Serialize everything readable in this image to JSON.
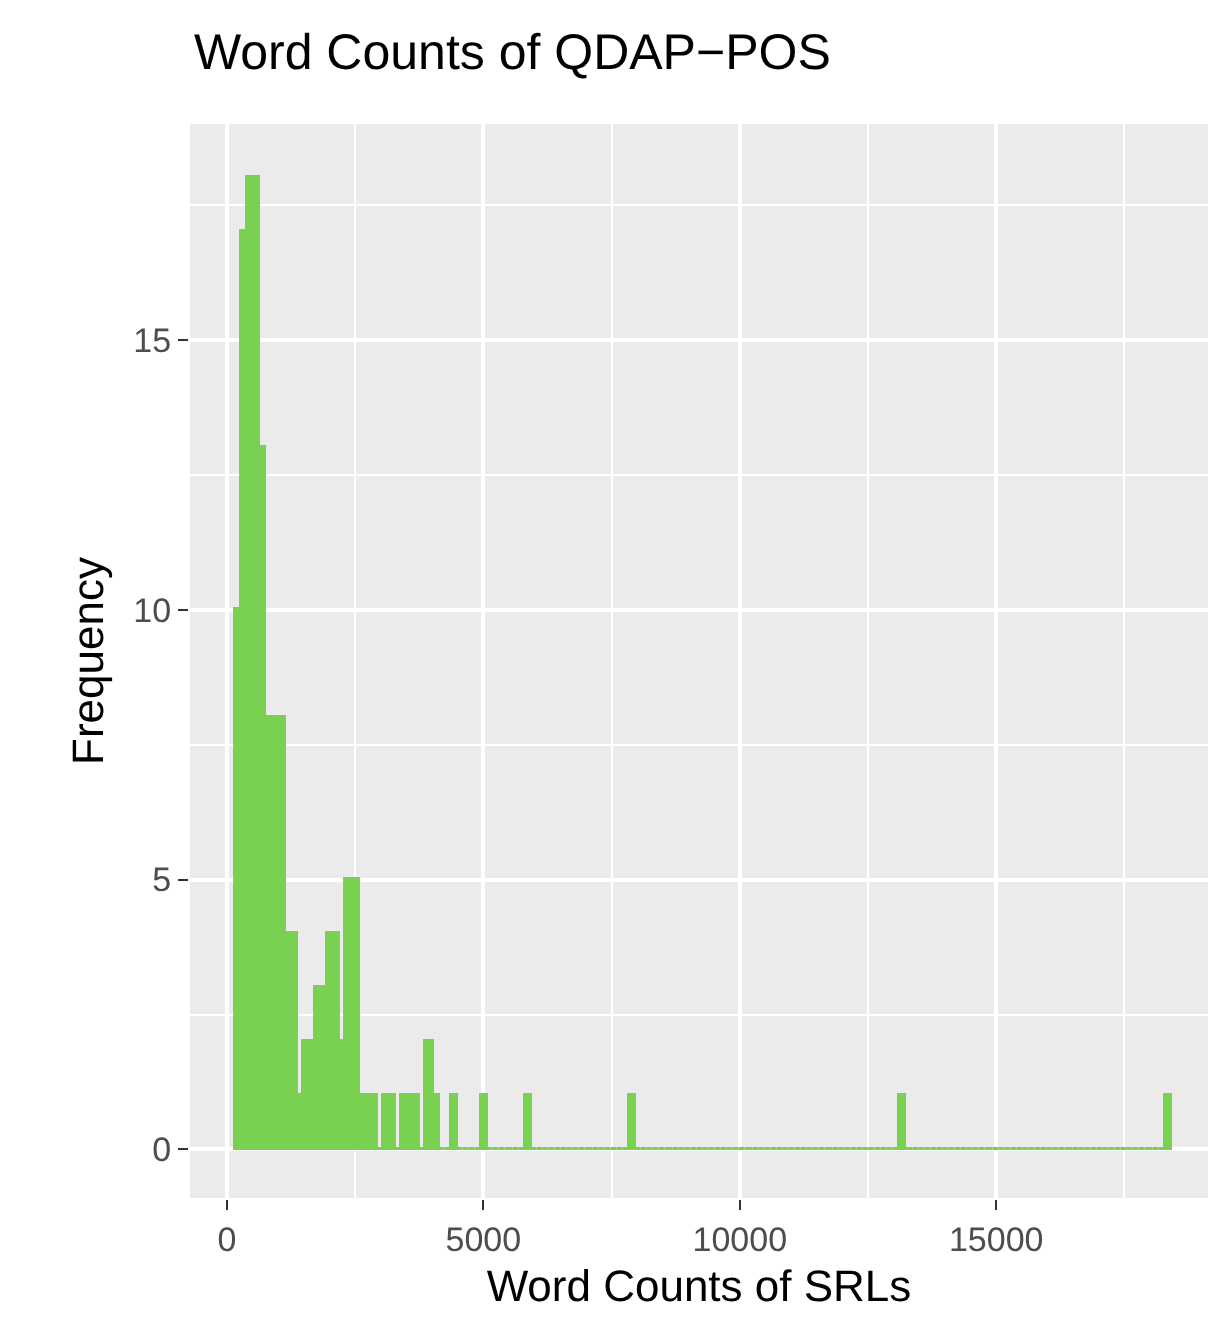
{
  "chart_data": {
    "type": "histogram",
    "title": "Word Counts of QDAP−POS",
    "xlabel": "Word Counts of SRLs",
    "ylabel": "Frequency",
    "color": "#7ad151",
    "bins": [
      180,
      300,
      420,
      540,
      660,
      780,
      900,
      1020,
      1140,
      1260,
      1380,
      1500,
      1620,
      1740,
      1860,
      1980,
      2100,
      2220,
      2340,
      2460,
      2580,
      2700,
      2820,
      2940,
      3060,
      3180,
      3300,
      3420,
      3540,
      3660,
      3780,
      3900,
      4020,
      4140,
      4260,
      4380,
      4500,
      4620,
      4740,
      4860,
      4980,
      5100,
      5220,
      5340,
      5460,
      5580,
      5700,
      5820,
      5940,
      6060,
      6180,
      6300,
      6420,
      6540,
      6660,
      6780,
      6900,
      7020,
      7140,
      7260,
      7380,
      7500,
      7620,
      7740,
      7860,
      7980,
      8100,
      8220,
      8340,
      8460,
      8580,
      8700,
      8820,
      8940,
      9060,
      9180,
      9300,
      9420,
      9540,
      9660,
      9780,
      9900,
      10020,
      10140,
      10260,
      10380,
      10500,
      10620,
      10740,
      10860,
      10980,
      11100,
      11220,
      11340,
      11460,
      11580,
      11700,
      11820,
      11940,
      12060,
      12180,
      12300,
      12420,
      12540,
      12660,
      12780,
      12900,
      13020,
      13140,
      13260,
      13380,
      13500,
      13620,
      13740,
      13860,
      13980,
      14100,
      14220,
      14340,
      14460,
      14580,
      14700,
      14820,
      14940,
      15060,
      15180,
      15300,
      15420,
      15540,
      15660,
      15780,
      15900,
      16020,
      16140,
      16260,
      16380,
      16500,
      16620,
      16740,
      16860,
      16980,
      17100,
      17220,
      17340,
      17460,
      17580,
      17700,
      17820,
      17940,
      18060,
      18180,
      18300,
      18420
    ],
    "values": [
      10,
      17,
      18,
      18,
      13,
      8,
      8,
      8,
      4,
      4,
      1,
      2,
      2,
      3,
      3,
      4,
      4,
      2,
      5,
      5,
      1,
      1,
      1,
      0,
      1,
      1,
      0,
      1,
      1,
      1,
      0,
      2,
      1,
      0,
      0,
      1,
      0,
      0,
      0,
      0,
      1,
      0,
      0,
      0,
      0,
      0,
      0,
      1,
      0,
      0,
      0,
      0,
      0,
      0,
      0,
      0,
      0,
      0,
      0,
      0,
      0,
      0,
      0,
      0,
      1,
      0,
      0,
      0,
      0,
      0,
      0,
      0,
      0,
      0,
      0,
      0,
      0,
      0,
      0,
      0,
      0,
      0,
      0,
      0,
      0,
      0,
      0,
      0,
      0,
      0,
      0,
      0,
      0,
      0,
      0,
      0,
      0,
      0,
      0,
      0,
      0,
      0,
      0,
      0,
      0,
      0,
      0,
      0,
      1,
      0,
      0,
      0,
      0,
      0,
      0,
      0,
      0,
      0,
      0,
      0,
      0,
      0,
      0,
      0,
      0,
      0,
      0,
      0,
      0,
      0,
      0,
      0,
      0,
      0,
      0,
      0,
      0,
      0,
      0,
      0,
      0,
      0,
      0,
      0,
      0,
      0,
      0,
      0,
      0,
      0,
      0,
      1
    ],
    "xlim": [
      -720,
      19130
    ],
    "xticks": [
      0,
      5000,
      10000,
      15000
    ],
    "ylim": [
      -0.9,
      19
    ],
    "yticks": [
      0,
      5,
      10,
      15
    ],
    "grid": true
  }
}
